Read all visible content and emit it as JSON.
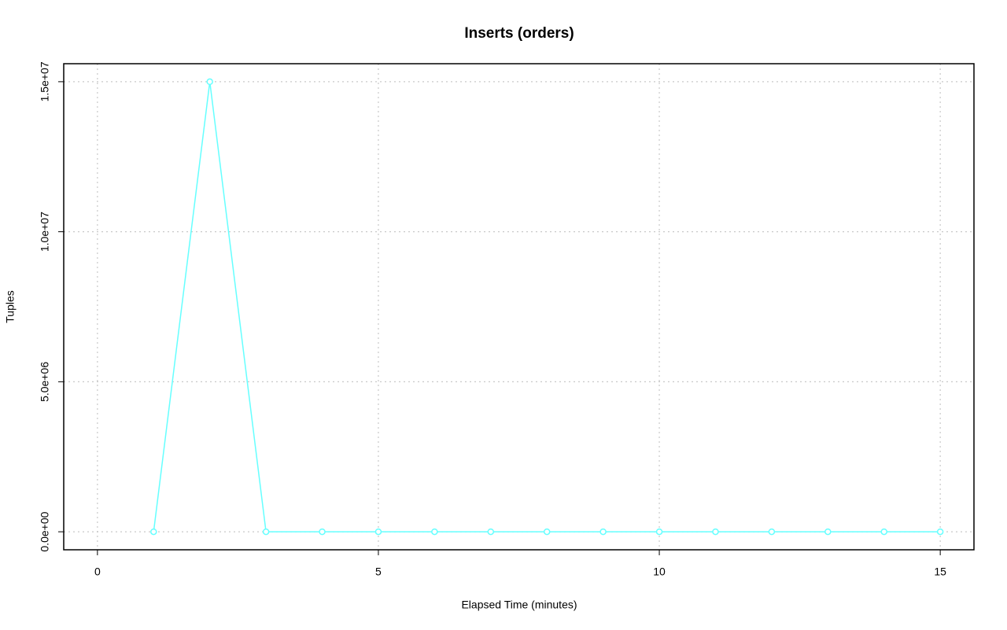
{
  "chart_data": {
    "type": "line",
    "title": "Inserts (orders)",
    "x_label": "Elapsed Time (minutes)",
    "y_label": "Tuples",
    "x": [
      1,
      2,
      3,
      4,
      5,
      6,
      7,
      8,
      9,
      10,
      11,
      12,
      13,
      14,
      15
    ],
    "values": [
      0,
      15000000,
      0,
      0,
      0,
      0,
      0,
      0,
      0,
      0,
      0,
      0,
      0,
      0,
      0
    ],
    "color": "#66ffff",
    "xlim": [
      -0.6,
      15.6
    ],
    "xticks": [
      0,
      5,
      10,
      15
    ],
    "ylim": [
      -600000,
      15600000
    ],
    "yticks": [
      {
        "value": 0,
        "label": "0.0e+00"
      },
      {
        "value": 5000000,
        "label": "5.0e+06"
      },
      {
        "value": 10000000,
        "label": "1.0e+07"
      },
      {
        "value": 15000000,
        "label": "1.5e+07"
      }
    ],
    "grid": true
  }
}
